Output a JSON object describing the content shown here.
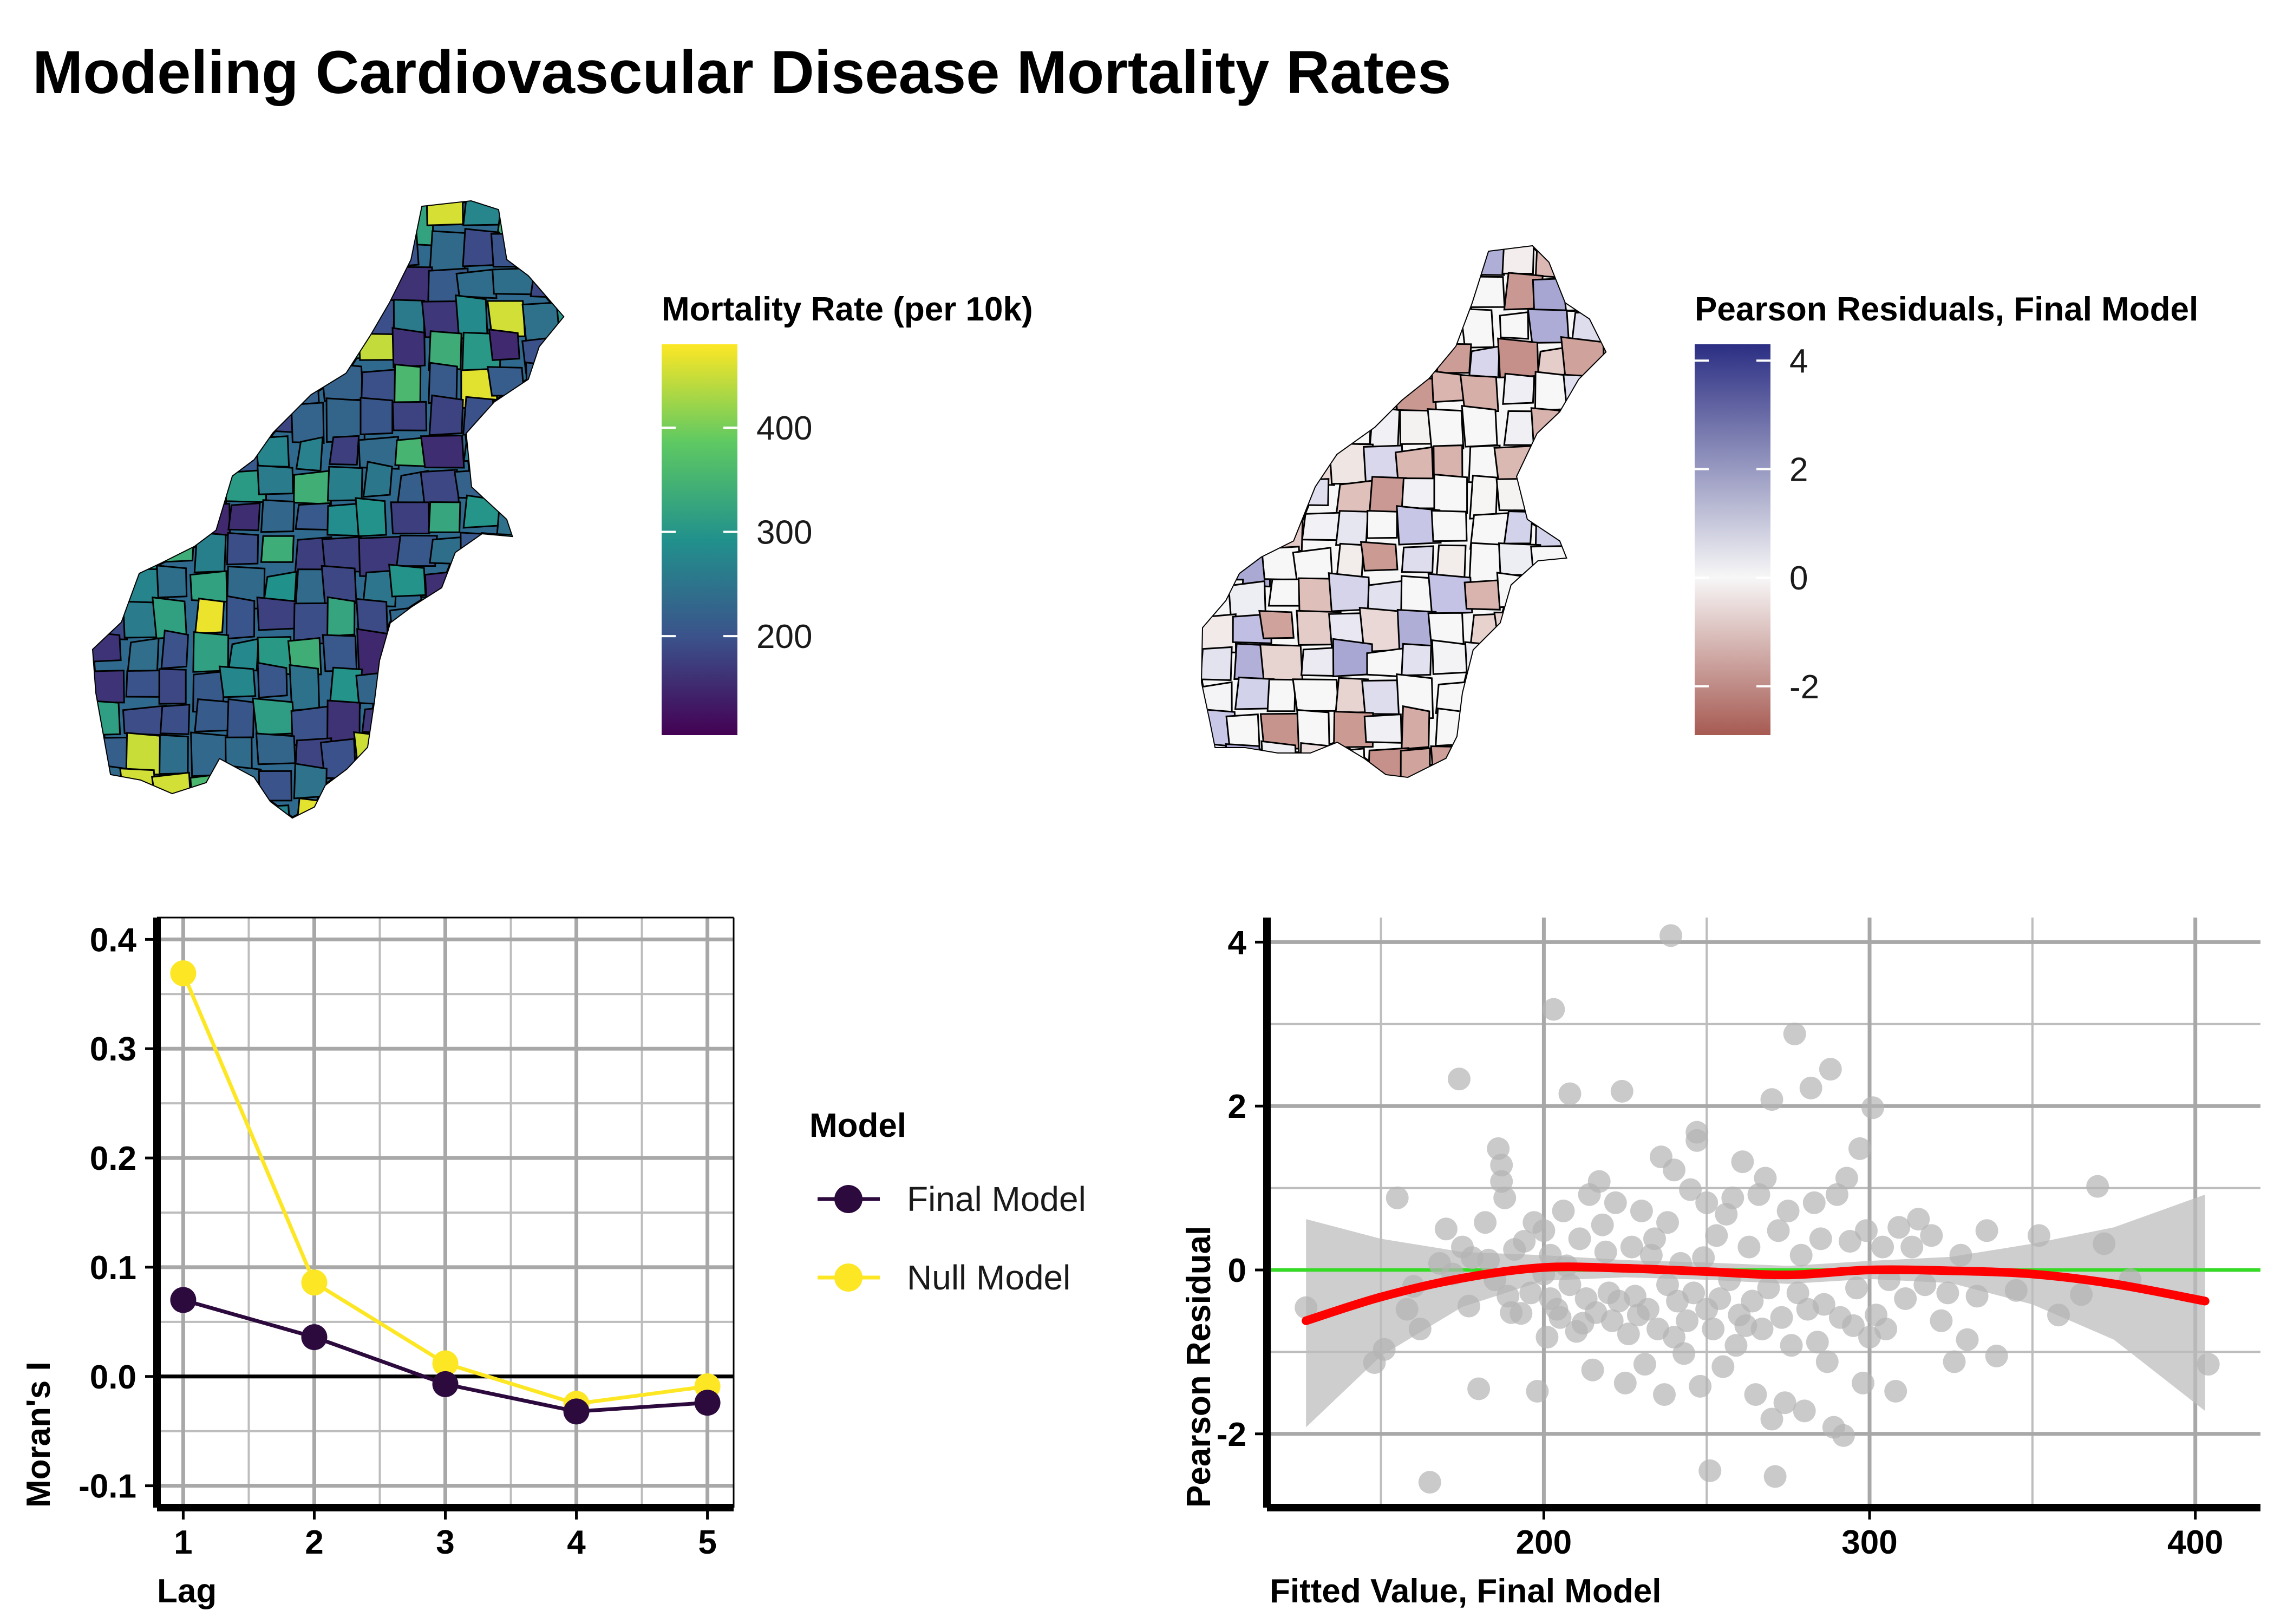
{
  "title": "Modeling Cardiovascular Disease Mortality Rates",
  "colors": {
    "viridis": [
      "#440154",
      "#3b528b",
      "#21918c",
      "#5ec962",
      "#fde725"
    ],
    "final_model": "#2d0a3e",
    "null_model": "#fde725",
    "loess": "#ff0000",
    "zero_line": "#33dd22",
    "points": "#b3b3b3",
    "ribbon": "#c7c7c7",
    "residual_pos": "#2b2e83",
    "residual_mid": "#f7f7f7",
    "residual_neg": "#a65a52"
  },
  "chart_data": [
    {
      "type": "heatmap",
      "subtype": "choropleth map",
      "legend": {
        "title": "Mortality Rate (per 10k)",
        "ticks": [
          "200",
          "300",
          "400"
        ],
        "tick_values": [
          200,
          300,
          400
        ],
        "range": [
          105,
          480
        ],
        "palette": "viridis"
      }
    },
    {
      "type": "heatmap",
      "subtype": "choropleth map",
      "legend": {
        "title": "Pearson Residuals, Final Model",
        "ticks": [
          "4",
          "2",
          "0",
          "-2"
        ],
        "tick_values": [
          4,
          2,
          0,
          -2
        ],
        "range": [
          -2.9,
          4.3
        ],
        "palette": "diverging blue-white-red"
      }
    },
    {
      "type": "line",
      "xlabel": "Lag",
      "ylabel": "Moran's I",
      "x": [
        1,
        2,
        3,
        4,
        5
      ],
      "x_ticks": [
        "1",
        "2",
        "3",
        "4",
        "5"
      ],
      "y_ticks": [
        "0.4",
        "0.3",
        "0.2",
        "0.1",
        "0.0",
        "-0.1"
      ],
      "xlim": [
        0.8,
        5.2
      ],
      "ylim": [
        -0.12,
        0.42
      ],
      "grid": true,
      "reference_line_y": 0,
      "legend_title": "Model",
      "legend_position": "right",
      "series": [
        {
          "name": "Final Model",
          "values": [
            0.07,
            0.036,
            -0.007,
            -0.032,
            -0.024
          ]
        },
        {
          "name": "Null Model",
          "values": [
            0.369,
            0.086,
            0.012,
            -0.025,
            -0.009
          ]
        }
      ]
    },
    {
      "type": "scatter",
      "xlabel": "Fitted Value, Final Model",
      "ylabel": "Pearson Residual",
      "x_ticks": [
        "200",
        "300",
        "400"
      ],
      "y_ticks": [
        "4",
        "2",
        "0",
        "-2"
      ],
      "xlim": [
        115,
        420
      ],
      "ylim": [
        -2.9,
        4.3
      ],
      "grid": true,
      "reference_line_y": 0,
      "loess": {
        "x": [
          127,
          150,
          175,
          200,
          225,
          250,
          275,
          300,
          325,
          350,
          375,
          403
        ],
        "y": [
          -0.62,
          -0.33,
          -0.1,
          0.03,
          0.02,
          -0.02,
          -0.06,
          0.0,
          -0.01,
          -0.05,
          -0.17,
          -0.38
        ],
        "ci_lower": [
          -1.92,
          -1.05,
          -0.45,
          -0.13,
          -0.09,
          -0.12,
          -0.17,
          -0.11,
          -0.16,
          -0.42,
          -0.85,
          -1.72
        ],
        "ci_upper": [
          0.62,
          0.38,
          0.22,
          0.18,
          0.12,
          0.09,
          0.05,
          0.11,
          0.16,
          0.32,
          0.52,
          0.92
        ]
      },
      "points": [
        [
          127,
          -0.46
        ],
        [
          148,
          -1.13
        ],
        [
          151,
          -0.97
        ],
        [
          155,
          0.88
        ],
        [
          158,
          -0.48
        ],
        [
          160,
          -0.2
        ],
        [
          162,
          -0.72
        ],
        [
          165,
          -2.59
        ],
        [
          168,
          0.08
        ],
        [
          170,
          0.5
        ],
        [
          172,
          -0.05
        ],
        [
          174,
          2.33
        ],
        [
          175,
          0.28
        ],
        [
          177,
          -0.44
        ],
        [
          178,
          0.15
        ],
        [
          180,
          -1.45
        ],
        [
          182,
          0.58
        ],
        [
          183,
          0.12
        ],
        [
          185,
          -0.12
        ],
        [
          186,
          1.48
        ],
        [
          187,
          1.28
        ],
        [
          187,
          1.08
        ],
        [
          188,
          0.88
        ],
        [
          189,
          -0.32
        ],
        [
          190,
          -0.52
        ],
        [
          191,
          0.25
        ],
        [
          193,
          -0.53
        ],
        [
          194,
          0.35
        ],
        [
          196,
          -0.28
        ],
        [
          197,
          0.58
        ],
        [
          198,
          -1.48
        ],
        [
          200,
          -0.05
        ],
        [
          200,
          0.48
        ],
        [
          201,
          -0.82
        ],
        [
          202,
          -0.35
        ],
        [
          202,
          0.18
        ],
        [
          203,
          3.18
        ],
        [
          204,
          -0.48
        ],
        [
          205,
          -0.58
        ],
        [
          206,
          0.72
        ],
        [
          207,
          0.05
        ],
        [
          208,
          -0.18
        ],
        [
          208,
          2.15
        ],
        [
          210,
          -0.75
        ],
        [
          211,
          0.38
        ],
        [
          212,
          -0.65
        ],
        [
          213,
          -0.35
        ],
        [
          214,
          0.92
        ],
        [
          215,
          -1.22
        ],
        [
          216,
          -0.52
        ],
        [
          217,
          1.08
        ],
        [
          218,
          0.55
        ],
        [
          219,
          0.22
        ],
        [
          220,
          -0.28
        ],
        [
          221,
          -0.62
        ],
        [
          222,
          0.82
        ],
        [
          223,
          -0.38
        ],
        [
          224,
          2.18
        ],
        [
          225,
          -1.38
        ],
        [
          226,
          -0.78
        ],
        [
          227,
          0.28
        ],
        [
          228,
          -0.32
        ],
        [
          229,
          -0.55
        ],
        [
          230,
          0.72
        ],
        [
          231,
          -1.15
        ],
        [
          232,
          -0.48
        ],
        [
          233,
          0.18
        ],
        [
          234,
          0.38
        ],
        [
          235,
          -0.72
        ],
        [
          236,
          1.38
        ],
        [
          237,
          -1.52
        ],
        [
          238,
          -0.18
        ],
        [
          238,
          0.58
        ],
        [
          239,
          4.08
        ],
        [
          240,
          -0.82
        ],
        [
          240,
          1.22
        ],
        [
          241,
          -0.38
        ],
        [
          242,
          0.08
        ],
        [
          243,
          -1.02
        ],
        [
          244,
          -0.62
        ],
        [
          245,
          0.98
        ],
        [
          246,
          -0.28
        ],
        [
          247,
          1.68
        ],
        [
          247,
          1.58
        ],
        [
          248,
          -1.42
        ],
        [
          249,
          0.15
        ],
        [
          250,
          -0.48
        ],
        [
          250,
          0.82
        ],
        [
          251,
          -2.45
        ],
        [
          252,
          -0.72
        ],
        [
          253,
          0.42
        ],
        [
          254,
          -0.35
        ],
        [
          255,
          -1.18
        ],
        [
          256,
          0.68
        ],
        [
          257,
          -0.12
        ],
        [
          258,
          0.88
        ],
        [
          259,
          -0.92
        ],
        [
          260,
          -0.55
        ],
        [
          261,
          1.32
        ],
        [
          262,
          -0.68
        ],
        [
          263,
          0.28
        ],
        [
          264,
          -0.38
        ],
        [
          265,
          -1.52
        ],
        [
          266,
          0.92
        ],
        [
          267,
          -0.72
        ],
        [
          268,
          1.12
        ],
        [
          269,
          -0.22
        ],
        [
          270,
          -1.82
        ],
        [
          270,
          2.08
        ],
        [
          271,
          -2.52
        ],
        [
          272,
          0.48
        ],
        [
          273,
          -0.58
        ],
        [
          274,
          -1.62
        ],
        [
          275,
          0.72
        ],
        [
          276,
          -0.92
        ],
        [
          277,
          2.88
        ],
        [
          278,
          -0.28
        ],
        [
          279,
          0.18
        ],
        [
          280,
          -1.72
        ],
        [
          281,
          -0.48
        ],
        [
          282,
          2.22
        ],
        [
          283,
          0.82
        ],
        [
          284,
          -0.88
        ],
        [
          285,
          0.38
        ],
        [
          286,
          -0.42
        ],
        [
          287,
          -1.12
        ],
        [
          288,
          2.45
        ],
        [
          289,
          -1.92
        ],
        [
          290,
          0.92
        ],
        [
          291,
          -0.58
        ],
        [
          292,
          -2.02
        ],
        [
          293,
          1.12
        ],
        [
          294,
          0.35
        ],
        [
          295,
          -0.68
        ],
        [
          296,
          -0.22
        ],
        [
          297,
          1.48
        ],
        [
          298,
          -1.38
        ],
        [
          299,
          0.48
        ],
        [
          300,
          -0.82
        ],
        [
          301,
          1.98
        ],
        [
          302,
          -0.55
        ],
        [
          304,
          0.28
        ],
        [
          305,
          -0.72
        ],
        [
          306,
          -0.12
        ],
        [
          308,
          -1.48
        ],
        [
          309,
          0.52
        ],
        [
          311,
          -0.35
        ],
        [
          313,
          0.28
        ],
        [
          315,
          0.62
        ],
        [
          317,
          -0.18
        ],
        [
          319,
          0.42
        ],
        [
          322,
          -0.62
        ],
        [
          324,
          -0.28
        ],
        [
          326,
          -1.12
        ],
        [
          328,
          0.18
        ],
        [
          330,
          -0.85
        ],
        [
          333,
          -0.32
        ],
        [
          336,
          0.48
        ],
        [
          339,
          -1.05
        ],
        [
          345,
          -0.25
        ],
        [
          352,
          0.42
        ],
        [
          358,
          -0.55
        ],
        [
          365,
          -0.3
        ],
        [
          370,
          1.02
        ],
        [
          372,
          0.32
        ],
        [
          380,
          -0.12
        ],
        [
          404,
          -1.15
        ]
      ]
    }
  ]
}
